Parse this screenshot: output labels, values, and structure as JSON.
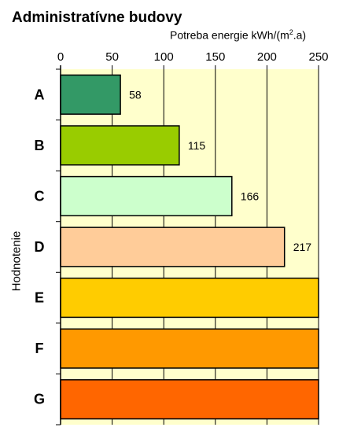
{
  "chart_data": {
    "type": "bar",
    "orientation": "horizontal",
    "title": "Administratívne budovy",
    "xlabel_prefix": "Potreba energie kWh/(m",
    "xlabel_sup": "2",
    "xlabel_suffix": ".a)",
    "ylabel": "Hodnotenie",
    "xlim": [
      0,
      250
    ],
    "xticks": [
      "0",
      "50",
      "100",
      "150",
      "200",
      "250"
    ],
    "grid": true,
    "categories": [
      "A",
      "B",
      "C",
      "D",
      "E",
      "F",
      "G"
    ],
    "values": [
      58,
      115,
      166,
      217,
      250,
      250,
      250
    ],
    "value_labels": [
      "58",
      "115",
      "166",
      "217",
      "",
      "",
      ""
    ],
    "colors": [
      "#339966",
      "#99cc00",
      "#ccffcc",
      "#ffcc99",
      "#ffcc00",
      "#ff9900",
      "#ff6600"
    ],
    "plot_background": "#ffffcc"
  }
}
